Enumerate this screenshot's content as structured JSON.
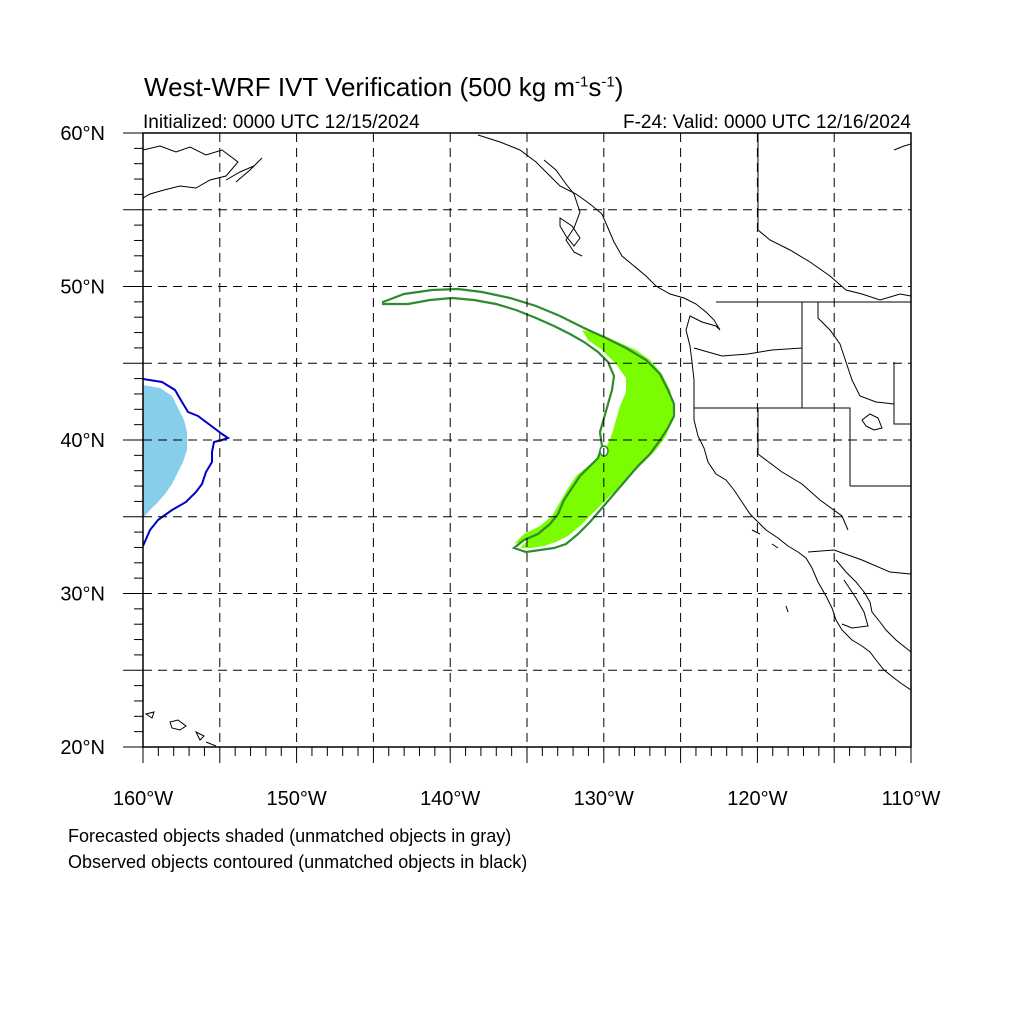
{
  "header": {
    "title_prefix": "West-WRF IVT Verification (500 kg m",
    "title_sup1": "-1",
    "title_mid": "s",
    "title_sup2": "-1",
    "title_suffix": ")",
    "initialized": "Initialized: 0000 UTC 12/15/2024",
    "valid": "F-24: Valid: 0000 UTC 12/16/2024"
  },
  "axes": {
    "lat_labels": [
      "60°N",
      "50°N",
      "40°N",
      "30°N",
      "20°N"
    ],
    "lat_values": [
      60,
      50,
      40,
      30,
      20
    ],
    "lon_labels": [
      "160°W",
      "150°W",
      "140°W",
      "130°W",
      "120°W",
      "110°W"
    ],
    "lon_values": [
      -160,
      -150,
      -140,
      -130,
      -120,
      -110
    ],
    "lat_range": [
      20,
      60
    ],
    "lon_range": [
      -160,
      -110
    ],
    "grid_lat_step": 5,
    "grid_lon_step": 5,
    "grid": true
  },
  "colors": {
    "forecast_matched": "#7cfc00",
    "observed_matched": "#2e8b2e",
    "forecast_other": "#87ceeb",
    "observed_other": "#0000cd",
    "coast": "#000000"
  },
  "legend": {
    "line1": "Forecasted objects shaded (unmatched objects in gray)",
    "line2": "Observed objects contoured (unmatched objects in black)"
  }
}
